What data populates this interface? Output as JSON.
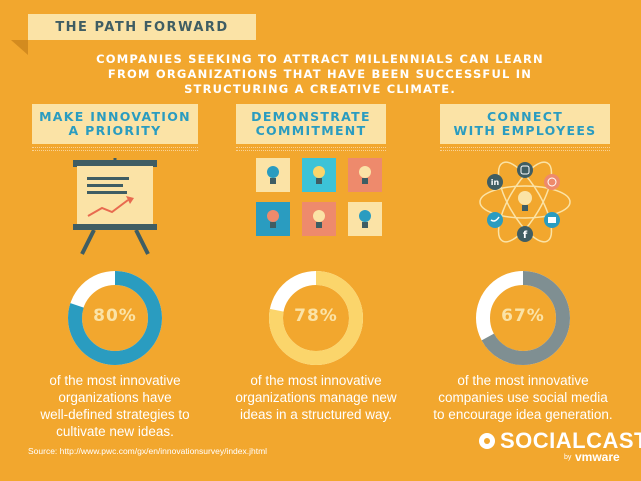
{
  "title": "THE PATH FORWARD",
  "intro": [
    "COMPANIES SEEKING TO ATTRACT MILLENNIALS CAN LEARN",
    "FROM ORGANIZATIONS THAT HAVE BEEN SUCCESSFUL IN",
    "STRUCTURING A CREATIVE CLIMATE."
  ],
  "columns": [
    {
      "heading": [
        "MAKE INNOVATION",
        "A PRIORITY"
      ],
      "percent": 80,
      "percent_label": "80%",
      "description": [
        "of the most innovative",
        "organizations have",
        "well-defined strategies to",
        "cultivate new ideas."
      ],
      "ring_color": "#2A9CC0",
      "track_color": "#FFFFFF"
    },
    {
      "heading": [
        "DEMONSTRATE",
        "COMMITMENT"
      ],
      "percent": 78,
      "percent_label": "78%",
      "description": [
        "of the most innovative",
        "organizations manage new",
        "ideas in a structured way."
      ],
      "ring_color": "#FBD56B",
      "track_color": "#FFFFFF"
    },
    {
      "heading": [
        "CONNECT",
        "WITH EMPLOYEES"
      ],
      "percent": 67,
      "percent_label": "67%",
      "description": [
        "of the most innovative",
        "companies use social media",
        "to encourage idea generation."
      ],
      "ring_color": "#7F8F92",
      "track_color": "#FFFFFF"
    }
  ],
  "source": "Source: http://www.pwc.com/gx/en/innovationsurvey/index.jhtml",
  "brand": {
    "name": "SOCIALCAST",
    "by": "by",
    "vendor": "vmware"
  },
  "colors": {
    "background": "#F2A72E",
    "banner": "#FBE3A6",
    "accent": "#2A9CC0",
    "text_dark": "#3F5D63"
  },
  "icons": [
    "presentation-board-icon",
    "lightbulb-icon",
    "linkedin-icon",
    "instagram-icon",
    "dribbble-icon",
    "twitter-icon",
    "facebook-icon",
    "social-icon"
  ]
}
